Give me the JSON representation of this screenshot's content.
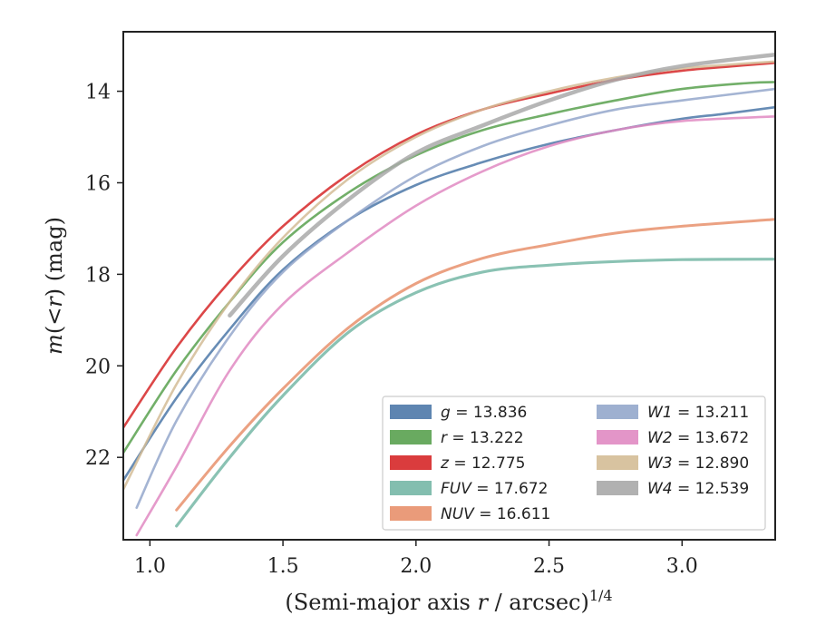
{
  "chart_data": {
    "type": "line",
    "title": "",
    "xlabel": "(Semi-major axis r / arcsec)^{1/4}",
    "ylabel": "m(<r) (mag)",
    "xlim": [
      0.9,
      3.35
    ],
    "ylim": [
      23.8,
      12.7
    ],
    "y_inverted": true,
    "grid": false,
    "legend_position": "lower-right",
    "x_ticks": [
      "1.0",
      "1.5",
      "2.0",
      "2.5",
      "3.0"
    ],
    "y_ticks": [
      "14",
      "16",
      "18",
      "20",
      "22"
    ],
    "series": [
      {
        "name": "g",
        "total": "13.836",
        "color": "#4c78a8",
        "x": [
          0.9,
          1.1,
          1.3,
          1.5,
          1.75,
          2.0,
          2.25,
          2.5,
          2.75,
          3.0,
          3.15,
          3.35
        ],
        "y": [
          22.5,
          20.7,
          19.2,
          17.9,
          16.8,
          16.05,
          15.55,
          15.15,
          14.85,
          14.6,
          14.5,
          14.35
        ]
      },
      {
        "name": "r",
        "total": "13.222",
        "color": "#59a14f",
        "x": [
          0.9,
          1.1,
          1.3,
          1.5,
          1.75,
          2.0,
          2.25,
          2.5,
          2.75,
          3.0,
          3.25,
          3.35
        ],
        "y": [
          21.9,
          20.1,
          18.6,
          17.3,
          16.2,
          15.4,
          14.85,
          14.5,
          14.2,
          13.95,
          13.82,
          13.8
        ]
      },
      {
        "name": "z",
        "total": "12.775",
        "color": "#d62728",
        "x": [
          0.9,
          1.1,
          1.3,
          1.5,
          1.75,
          2.0,
          2.25,
          2.5,
          2.75,
          3.0,
          3.2,
          3.35
        ],
        "y": [
          21.35,
          19.6,
          18.15,
          16.95,
          15.8,
          14.95,
          14.4,
          14.05,
          13.75,
          13.55,
          13.45,
          13.38
        ]
      },
      {
        "name": "FUV",
        "total": "17.672",
        "color": "#76b7a6",
        "x": [
          1.1,
          1.3,
          1.5,
          1.75,
          2.0,
          2.25,
          2.5,
          2.75,
          3.0,
          3.35
        ],
        "y": [
          23.5,
          22.0,
          20.65,
          19.25,
          18.4,
          17.95,
          17.8,
          17.72,
          17.68,
          17.67
        ]
      },
      {
        "name": "NUV",
        "total": "16.611",
        "color": "#e8906c",
        "x": [
          1.1,
          1.3,
          1.5,
          1.75,
          2.0,
          2.25,
          2.5,
          2.75,
          3.0,
          3.35
        ],
        "y": [
          23.15,
          21.75,
          20.5,
          19.15,
          18.2,
          17.65,
          17.35,
          17.1,
          16.95,
          16.8
        ]
      },
      {
        "name": "W1",
        "total": "13.211",
        "color": "#94a7cb",
        "x": [
          0.95,
          1.1,
          1.3,
          1.5,
          1.75,
          2.0,
          2.25,
          2.5,
          2.75,
          3.0,
          3.35
        ],
        "y": [
          23.1,
          21.2,
          19.35,
          17.95,
          16.8,
          15.85,
          15.2,
          14.75,
          14.4,
          14.2,
          13.95
        ]
      },
      {
        "name": "W2",
        "total": "13.672",
        "color": "#e08ac2",
        "x": [
          0.95,
          1.1,
          1.3,
          1.5,
          1.75,
          2.0,
          2.25,
          2.5,
          2.75,
          3.0,
          3.35
        ],
        "y": [
          23.7,
          22.2,
          20.1,
          18.65,
          17.5,
          16.5,
          15.75,
          15.2,
          14.85,
          14.65,
          14.55
        ]
      },
      {
        "name": "W3",
        "total": "12.890",
        "color": "#d4bc96",
        "x": [
          0.9,
          1.1,
          1.3,
          1.5,
          1.75,
          2.0,
          2.25,
          2.5,
          2.75,
          3.0,
          3.35
        ],
        "y": [
          22.7,
          20.4,
          18.6,
          17.2,
          15.9,
          15.0,
          14.4,
          14.0,
          13.7,
          13.5,
          13.35
        ]
      },
      {
        "name": "W4",
        "total": "12.539",
        "color": "#a9a9a9",
        "x": [
          1.3,
          1.5,
          1.75,
          2.0,
          2.25,
          2.5,
          2.75,
          3.0,
          3.35
        ],
        "y": [
          18.9,
          17.6,
          16.35,
          15.35,
          14.75,
          14.2,
          13.75,
          13.45,
          13.2
        ]
      }
    ]
  }
}
